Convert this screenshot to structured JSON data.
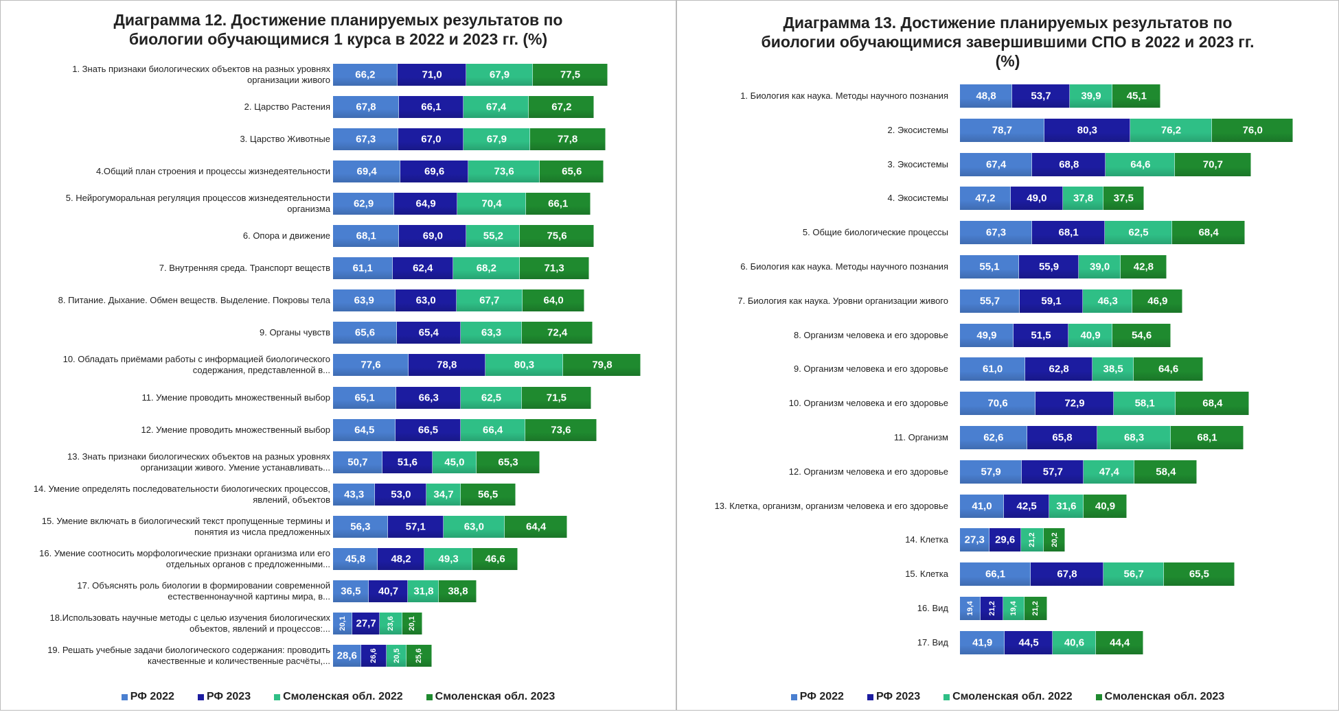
{
  "chart_data": [
    {
      "type": "stacked_bar_horizontal",
      "title": "Диаграмма 12. Достижение планируемых результатов по биологии обучающимися 1 курса в 2022 и 2023 гг. (%)",
      "categories": [
        "1. Знать признаки биологических объектов на разных уровнях организации живого",
        "2. Царство Растения",
        "3. Царство Животные",
        "4.Общий план строения и процессы жизнедеятельности",
        "5. Нейрогуморальная регуляция процессов жизнедеятельности организма",
        "6. Опора и движение",
        "7. Внутренняя среда. Транспорт веществ",
        "8. Питание. Дыхание. Обмен веществ. Выделение. Покровы тела",
        "9. Органы чувств",
        "10. Обладать приёмами работы с информацией биологического содержания, представленной в...",
        "11. Умение проводить множественный выбор",
        "12. Умение проводить множественный выбор",
        "13. Знать признаки биологических объектов на разных уровнях организации живого. Умение устанавливать...",
        "14. Умение определять последовательности биологических процессов, явлений, объектов",
        "15. Умение включать в биологический текст пропущенные термины и понятия из числа предложенных",
        "16. Умение соотносить морфологические признаки организма или его отдельных органов с предложенными...",
        "17. Объяснять роль биологии в формировании современной естественнонаучной картины мира, в...",
        "18.Использовать научные методы с целью изучения биологических объектов, явлений и процессов:...",
        "19. Решать учебные задачи биологического содержания: проводить качественные и количественные расчёты,..."
      ],
      "series": [
        {
          "name": "РФ 2022",
          "color": "#4a7fd0",
          "values": [
            66.2,
            67.8,
            67.3,
            69.4,
            62.9,
            68.1,
            61.1,
            63.9,
            65.6,
            77.6,
            65.1,
            64.5,
            50.7,
            43.3,
            56.3,
            45.8,
            36.5,
            20.1,
            28.6
          ],
          "value_labels": [
            "66,2",
            "67,8",
            "67,3",
            "69,4",
            "62,9",
            "68,1",
            "61,1",
            "63,9",
            "65,6",
            "77,6",
            "65,1",
            "64,5",
            "50,7",
            "43,3",
            "56,3",
            "45,8",
            "36,5",
            "20,1",
            "28,6"
          ]
        },
        {
          "name": "РФ 2023",
          "color": "#1c1ca0",
          "values": [
            71,
            66.1,
            67,
            69.6,
            64.9,
            69,
            62.4,
            63,
            65.4,
            78.8,
            66.3,
            66.5,
            51.6,
            53,
            57.1,
            48.2,
            40.7,
            27.7,
            26.6
          ],
          "value_labels": [
            "71,0",
            "66,1",
            "67,0",
            "69,6",
            "64,9",
            "69,0",
            "62,4",
            "63,0",
            "65,4",
            "78,8",
            "66,3",
            "66,5",
            "51,6",
            "53,0",
            "57,1",
            "48,2",
            "40,7",
            "27,7",
            "26,6"
          ]
        },
        {
          "name": "Смоленская обл. 2022",
          "color": "#2fbf86",
          "values": [
            67.9,
            67.4,
            67.9,
            73.6,
            70.4,
            55.2,
            68.2,
            67.7,
            63.3,
            80.3,
            62.5,
            66.4,
            45,
            34.7,
            63,
            49.3,
            31.8,
            23.6,
            20.5
          ],
          "value_labels": [
            "67,9",
            "67,4",
            "67,9",
            "73,6",
            "70,4",
            "55,2",
            "68,2",
            "67,7",
            "63,3",
            "80,3",
            "62,5",
            "66,4",
            "45,0",
            "34,7",
            "63,0",
            "49,3",
            "31,8",
            "23,6",
            "20,5"
          ]
        },
        {
          "name": "Смоленская обл. 2023",
          "color": "#1f8a2f",
          "values": [
            77.5,
            67.2,
            77.8,
            65.6,
            66.1,
            75.6,
            71.3,
            64,
            72.4,
            79.8,
            71.5,
            73.6,
            65.3,
            56.5,
            64.4,
            46.6,
            38.8,
            20.1,
            25.6
          ],
          "value_labels": [
            "77,5",
            "67,2",
            "77,8",
            "65,6",
            "66,1",
            "75,6",
            "71,3",
            "64,0",
            "72,4",
            "79,8",
            "71,5",
            "73,6",
            "65,3",
            "56,5",
            "64,4",
            "46,6",
            "38,8",
            "20,1",
            "25,6"
          ]
        }
      ],
      "legend": "bottom"
    },
    {
      "type": "stacked_bar_horizontal",
      "title": "Диаграмма 13. Достижение планируемых результатов по биологии обучающимися завершившими СПО в 2022 и 2023 гг. (%)",
      "categories": [
        "1. Биология как наука. Методы научного познания",
        "2. Экосистемы",
        "3. Экосистемы",
        "4. Экосистемы",
        "5. Общие биологические процессы",
        "6. Биология как наука. Методы научного познания",
        "7. Биология как наука. Уровни организации живого",
        "8. Организм человека и его здоровье",
        "9. Организм человека и его здоровье",
        "10. Организм человека и его здоровье",
        "11. Организм",
        "12. Организм человека и его здоровье",
        "13. Клетка, организм, организм человека и его здоровье",
        "14. Клетка",
        "15. Клетка",
        "16. Вид",
        "17. Вид"
      ],
      "series": [
        {
          "name": "РФ 2022",
          "color": "#4a7fd0",
          "values": [
            48.8,
            78.7,
            67.4,
            47.2,
            67.3,
            55.1,
            55.7,
            49.9,
            61,
            70.6,
            62.6,
            57.9,
            41,
            27.3,
            66.1,
            19.4,
            41.9
          ],
          "value_labels": [
            "48,8",
            "78,7",
            "67,4",
            "47,2",
            "67,3",
            "55,1",
            "55,7",
            "49,9",
            "61,0",
            "70,6",
            "62,6",
            "57,9",
            "41,0",
            "27,3",
            "66,1",
            "19,4",
            "41,9"
          ]
        },
        {
          "name": "РФ 2023",
          "color": "#1c1ca0",
          "values": [
            53.7,
            80.3,
            68.8,
            49,
            68.1,
            55.9,
            59.1,
            51.5,
            62.8,
            72.9,
            65.8,
            57.7,
            42.5,
            29.6,
            67.8,
            21.2,
            44.5
          ],
          "value_labels": [
            "53,7",
            "80,3",
            "68,8",
            "49,0",
            "68,1",
            "55,9",
            "59,1",
            "51,5",
            "62,8",
            "72,9",
            "65,8",
            "57,7",
            "42,5",
            "29,6",
            "67,8",
            "21,2",
            "44,5"
          ]
        },
        {
          "name": "Смоленская обл. 2022",
          "color": "#2fbf86",
          "values": [
            39.9,
            76.2,
            64.6,
            37.8,
            62.5,
            39,
            46.3,
            40.9,
            38.5,
            58.1,
            68.3,
            47.4,
            31.6,
            21.2,
            56.7,
            19.4,
            40.6
          ],
          "value_labels": [
            "39,9",
            "76,2",
            "64,6",
            "37,8",
            "62,5",
            "39,0",
            "46,3",
            "40,9",
            "38,5",
            "58,1",
            "68,3",
            "47,4",
            "31,6",
            "21,2",
            "56,7",
            "19,4",
            "40,6"
          ]
        },
        {
          "name": "Смоленская обл. 2023",
          "color": "#1f8a2f",
          "values": [
            45.1,
            76,
            70.7,
            37.5,
            68.4,
            42.8,
            46.9,
            54.6,
            64.6,
            68.4,
            68.1,
            58.4,
            40.9,
            20.2,
            65.5,
            21.2,
            44.4
          ],
          "value_labels": [
            "45,1",
            "76,0",
            "70,7",
            "37,5",
            "68,4",
            "42,8",
            "46,9",
            "54,6",
            "64,6",
            "68,4",
            "68,1",
            "58,4",
            "40,9",
            "20,2",
            "65,5",
            "21,2",
            "44,4"
          ]
        }
      ],
      "legend": "bottom"
    }
  ]
}
